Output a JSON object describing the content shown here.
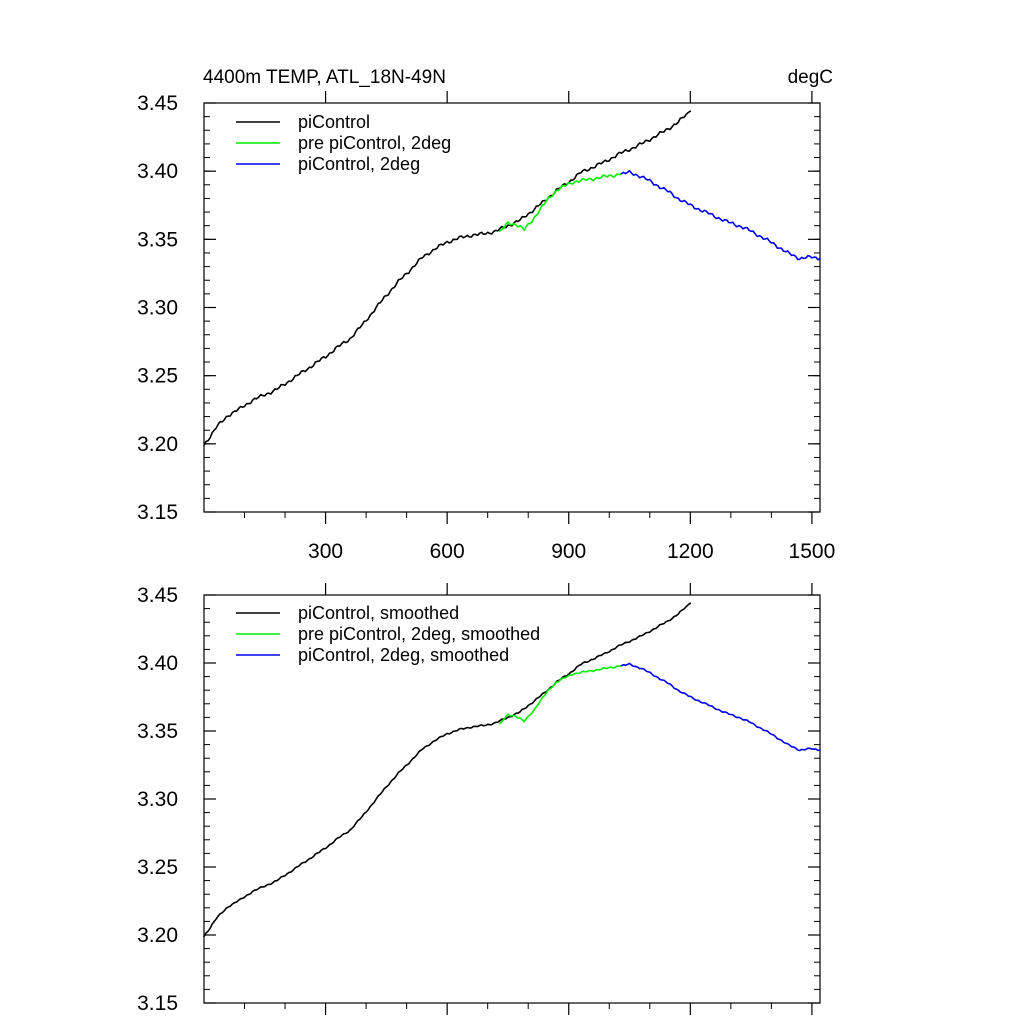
{
  "figure": {
    "title_left": "4400m TEMP, ATL_18N-49N",
    "title_right": "degC"
  },
  "colors": {
    "piControl": "#000000",
    "pre_piControl_2deg": "#00ee00",
    "piControl_2deg": "#0000ee"
  },
  "chart_data": [
    {
      "type": "line",
      "name": "top-panel",
      "title": "4400m TEMP, ATL_18N-49N",
      "units": "degC",
      "xlim": [
        0,
        1520
      ],
      "ylim": [
        3.15,
        3.45
      ],
      "xticks": [
        300,
        600,
        900,
        1200,
        1500
      ],
      "xtick_labels": [
        "300",
        "600",
        "900",
        "1200",
        "1500"
      ],
      "yticks": [
        3.15,
        3.2,
        3.25,
        3.3,
        3.35,
        3.4,
        3.45
      ],
      "ytick_labels": [
        "3.15",
        "3.20",
        "3.25",
        "3.30",
        "3.35",
        "3.40",
        "3.45"
      ],
      "legend_position": "top-left",
      "series": [
        {
          "name": "piControl",
          "color": "#000000",
          "x": [
            0,
            30,
            60,
            90,
            120,
            150,
            180,
            210,
            240,
            270,
            300,
            330,
            360,
            390,
            420,
            450,
            480,
            510,
            540,
            570,
            600,
            630,
            660,
            690,
            720,
            750,
            780,
            810,
            840,
            870,
            900,
            930,
            960,
            990,
            1020,
            1050,
            1080,
            1110,
            1140,
            1170,
            1200
          ],
          "y": [
            3.199,
            3.212,
            3.221,
            3.226,
            3.232,
            3.236,
            3.24,
            3.246,
            3.252,
            3.258,
            3.264,
            3.271,
            3.277,
            3.287,
            3.298,
            3.309,
            3.319,
            3.328,
            3.337,
            3.343,
            3.348,
            3.351,
            3.353,
            3.354,
            3.356,
            3.36,
            3.364,
            3.371,
            3.378,
            3.386,
            3.392,
            3.399,
            3.403,
            3.407,
            3.412,
            3.416,
            3.42,
            3.425,
            3.43,
            3.436,
            3.444
          ]
        },
        {
          "name": "pre piControl, 2deg",
          "color": "#00ee00",
          "x": [
            730,
            750,
            770,
            790,
            810,
            830,
            850,
            870,
            890,
            910,
            930,
            950,
            970,
            990,
            1010,
            1030
          ],
          "y": [
            3.355,
            3.362,
            3.361,
            3.357,
            3.364,
            3.372,
            3.38,
            3.386,
            3.389,
            3.392,
            3.393,
            3.394,
            3.395,
            3.396,
            3.397,
            3.398
          ]
        },
        {
          "name": "piControl, 2deg",
          "color": "#0000ee",
          "x": [
            1030,
            1050,
            1080,
            1110,
            1140,
            1170,
            1200,
            1230,
            1260,
            1290,
            1320,
            1350,
            1380,
            1410,
            1440,
            1470,
            1500,
            1520
          ],
          "y": [
            3.398,
            3.399,
            3.396,
            3.391,
            3.386,
            3.38,
            3.375,
            3.371,
            3.367,
            3.363,
            3.36,
            3.356,
            3.351,
            3.346,
            3.34,
            3.336,
            3.337,
            3.336
          ]
        }
      ]
    },
    {
      "type": "line",
      "name": "bottom-panel",
      "xlim": [
        0,
        1520
      ],
      "ylim": [
        3.15,
        3.45
      ],
      "xticks": [
        300,
        600,
        900,
        1200,
        1500
      ],
      "yticks": [
        3.15,
        3.2,
        3.25,
        3.3,
        3.35,
        3.4,
        3.45
      ],
      "ytick_labels": [
        "3.15",
        "3.20",
        "3.25",
        "3.30",
        "3.35",
        "3.40",
        "3.45"
      ],
      "legend_position": "top-left",
      "series": [
        {
          "name": "piControl, smoothed",
          "color": "#000000",
          "x": [
            0,
            30,
            60,
            90,
            120,
            150,
            180,
            210,
            240,
            270,
            300,
            330,
            360,
            390,
            420,
            450,
            480,
            510,
            540,
            570,
            600,
            630,
            660,
            690,
            720,
            750,
            780,
            810,
            840,
            870,
            900,
            930,
            960,
            990,
            1020,
            1050,
            1080,
            1110,
            1140,
            1170,
            1200
          ],
          "y": [
            3.199,
            3.212,
            3.221,
            3.226,
            3.232,
            3.236,
            3.24,
            3.246,
            3.252,
            3.258,
            3.264,
            3.271,
            3.277,
            3.287,
            3.298,
            3.309,
            3.319,
            3.328,
            3.337,
            3.343,
            3.348,
            3.351,
            3.353,
            3.354,
            3.356,
            3.36,
            3.364,
            3.371,
            3.378,
            3.386,
            3.392,
            3.399,
            3.403,
            3.407,
            3.412,
            3.416,
            3.42,
            3.425,
            3.43,
            3.436,
            3.444
          ]
        },
        {
          "name": "pre piControl, 2deg, smoothed",
          "color": "#00ee00",
          "x": [
            730,
            750,
            770,
            790,
            810,
            830,
            850,
            870,
            890,
            910,
            930,
            950,
            970,
            990,
            1010,
            1030
          ],
          "y": [
            3.355,
            3.362,
            3.361,
            3.357,
            3.364,
            3.372,
            3.38,
            3.386,
            3.389,
            3.392,
            3.393,
            3.394,
            3.395,
            3.396,
            3.397,
            3.398
          ]
        },
        {
          "name": "piControl, 2deg, smoothed",
          "color": "#0000ee",
          "x": [
            1030,
            1050,
            1080,
            1110,
            1140,
            1170,
            1200,
            1230,
            1260,
            1290,
            1320,
            1350,
            1380,
            1410,
            1440,
            1470,
            1500,
            1520
          ],
          "y": [
            3.398,
            3.399,
            3.396,
            3.391,
            3.386,
            3.38,
            3.375,
            3.371,
            3.367,
            3.363,
            3.36,
            3.356,
            3.351,
            3.346,
            3.34,
            3.336,
            3.337,
            3.336
          ]
        }
      ]
    }
  ]
}
